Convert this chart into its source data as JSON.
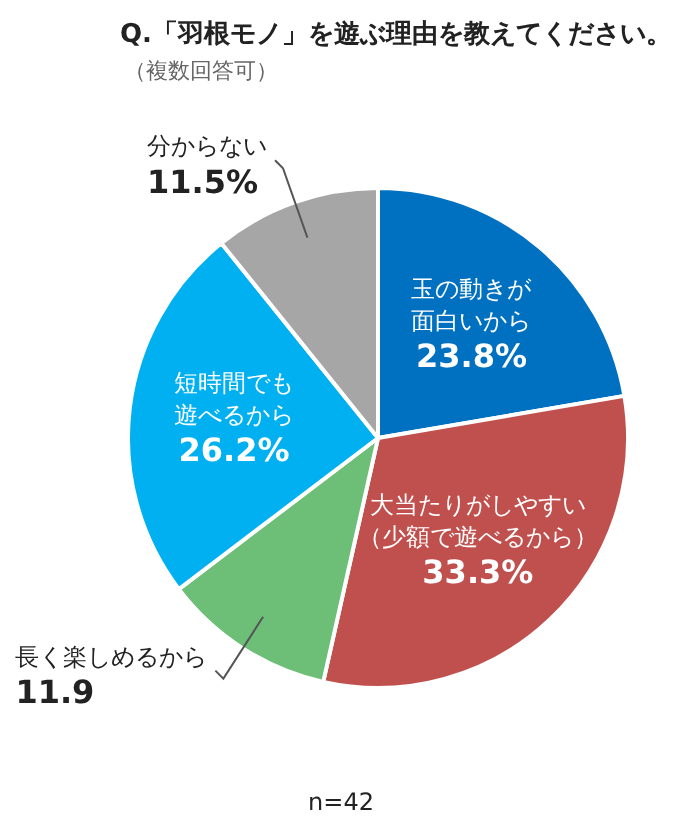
{
  "chart_data": {
    "type": "pie",
    "title": "Q.「羽根モノ」を遊ぶ理由を教えてください。",
    "subtitle": "（複数回答可）",
    "categories": [
      "玉の動きが面白いから",
      "大当たりがしやすい（少額で遊べるから）",
      "長く楽しめるから",
      "短時間でも遊べるから",
      "分からない"
    ],
    "values": [
      23.8,
      33.3,
      11.9,
      26.2,
      11.5
    ],
    "value_labels": [
      "23.8%",
      "33.3%",
      "11.9",
      "26.2%",
      "11.5%"
    ],
    "colors": [
      "#0070c0",
      "#c0504d",
      "#6dbf77",
      "#00b0f0",
      "#a6a6a6"
    ],
    "annotations": [
      "n=42"
    ],
    "legend": false
  }
}
